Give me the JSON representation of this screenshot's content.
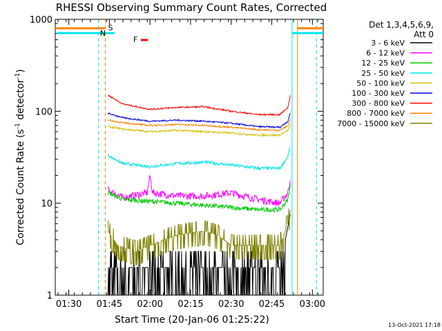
{
  "chart_data": {
    "type": "line",
    "title": "RHESSI Observing Summary Count Rates, Corrected",
    "xlabel": "Start Time (20-Jan-06 01:25:22)",
    "ylabel_main": "Corrected Count Rate (s",
    "ylabel_sup1": "-1",
    "ylabel_mid": " detector",
    "ylabel_sup2": "-1",
    "ylabel_end": ")",
    "yscale": "log",
    "ylim": [
      1,
      1000
    ],
    "xlim_minutes": [
      85,
      184
    ],
    "y_ticks": [
      {
        "v": 1,
        "label": "1"
      },
      {
        "v": 10,
        "label": "10"
      },
      {
        "v": 100,
        "label": "100"
      },
      {
        "v": 1000,
        "label": "1000"
      }
    ],
    "x_ticks": [
      {
        "m": 90,
        "label": "01:30"
      },
      {
        "m": 105,
        "label": "01:45"
      },
      {
        "m": 120,
        "label": "02:00"
      },
      {
        "m": 135,
        "label": "02:15"
      },
      {
        "m": 150,
        "label": "02:30"
      },
      {
        "m": 165,
        "label": "02:45"
      },
      {
        "m": 180,
        "label": "03:00"
      }
    ],
    "legend_header_1": "Det 1,3,4,5,6,9,",
    "legend_header_2": "Att 0",
    "legend_position": "right",
    "series": [
      {
        "name": "3 - 6 keV",
        "color": "#000000",
        "points": [
          [
            104.5,
            2.0
          ],
          [
            110,
            2.0
          ],
          [
            120,
            2.2
          ],
          [
            130,
            2.0
          ],
          [
            140,
            1.8
          ],
          [
            150,
            2.0
          ],
          [
            160,
            1.8
          ],
          [
            170,
            4.0
          ],
          [
            172,
            8.0
          ]
        ]
      },
      {
        "name": "6 - 12 keV",
        "color": "#ff00ff",
        "points": [
          [
            104.5,
            14
          ],
          [
            110,
            11.5
          ],
          [
            119,
            13
          ],
          [
            120,
            20
          ],
          [
            121,
            13
          ],
          [
            130,
            12
          ],
          [
            140,
            12
          ],
          [
            150,
            13
          ],
          [
            160,
            11
          ],
          [
            168,
            10
          ],
          [
            171,
            13
          ],
          [
            172,
            20
          ]
        ]
      },
      {
        "name": "12 - 25 keV",
        "color": "#00cc00",
        "points": [
          [
            104.5,
            13
          ],
          [
            110,
            11
          ],
          [
            120,
            10.5
          ],
          [
            130,
            10
          ],
          [
            140,
            9.5
          ],
          [
            150,
            9
          ],
          [
            160,
            8.5
          ],
          [
            168,
            8.5
          ],
          [
            171,
            11
          ],
          [
            172,
            17
          ]
        ]
      },
      {
        "name": "25 - 50 keV",
        "color": "#00e5e5",
        "points": [
          [
            104.5,
            33
          ],
          [
            110,
            27
          ],
          [
            120,
            25
          ],
          [
            130,
            27
          ],
          [
            140,
            28
          ],
          [
            150,
            26
          ],
          [
            160,
            24
          ],
          [
            168,
            24
          ],
          [
            171,
            32
          ],
          [
            172,
            45
          ]
        ]
      },
      {
        "name": "50 - 100 keV",
        "color": "#d4c000",
        "points": [
          [
            104.5,
            68
          ],
          [
            110,
            64
          ],
          [
            120,
            60
          ],
          [
            130,
            62
          ],
          [
            140,
            60
          ],
          [
            150,
            58
          ],
          [
            160,
            55
          ],
          [
            168,
            55
          ],
          [
            171,
            62
          ],
          [
            172,
            75
          ]
        ]
      },
      {
        "name": "100 - 300 keV",
        "color": "#0000dd",
        "points": [
          [
            104.5,
            95
          ],
          [
            110,
            85
          ],
          [
            120,
            78
          ],
          [
            130,
            80
          ],
          [
            140,
            78
          ],
          [
            150,
            74
          ],
          [
            160,
            68
          ],
          [
            168,
            67
          ],
          [
            171,
            78
          ],
          [
            172,
            100
          ]
        ]
      },
      {
        "name": "300 - 800 keV",
        "color": "#ff0000",
        "points": [
          [
            104.5,
            150
          ],
          [
            110,
            120
          ],
          [
            120,
            105
          ],
          [
            130,
            110
          ],
          [
            140,
            112
          ],
          [
            150,
            100
          ],
          [
            160,
            92
          ],
          [
            168,
            92
          ],
          [
            171,
            110
          ],
          [
            172,
            160
          ]
        ]
      },
      {
        "name": "800 - 7000 keV",
        "color": "#ff8000",
        "points": [
          [
            104.5,
            80
          ],
          [
            110,
            75
          ],
          [
            120,
            70
          ],
          [
            130,
            72
          ],
          [
            140,
            70
          ],
          [
            150,
            67
          ],
          [
            160,
            63
          ],
          [
            168,
            62
          ],
          [
            171,
            70
          ],
          [
            172,
            85
          ]
        ]
      },
      {
        "name": "7000 - 15000 keV",
        "color": "#808000",
        "points": [
          [
            104.5,
            5.0
          ],
          [
            108,
            3.5
          ],
          [
            115,
            3.0
          ],
          [
            125,
            4.0
          ],
          [
            130,
            4.5
          ],
          [
            140,
            5.0
          ],
          [
            145,
            4.5
          ],
          [
            150,
            3.5
          ],
          [
            160,
            3.5
          ],
          [
            168,
            3.5
          ],
          [
            171,
            6
          ],
          [
            172,
            9
          ]
        ]
      }
    ],
    "markers": {
      "S_label": "S",
      "N_label": "N",
      "F_label": "F"
    }
  },
  "footer": {
    "date": "13-Oct-2021 17:18"
  }
}
